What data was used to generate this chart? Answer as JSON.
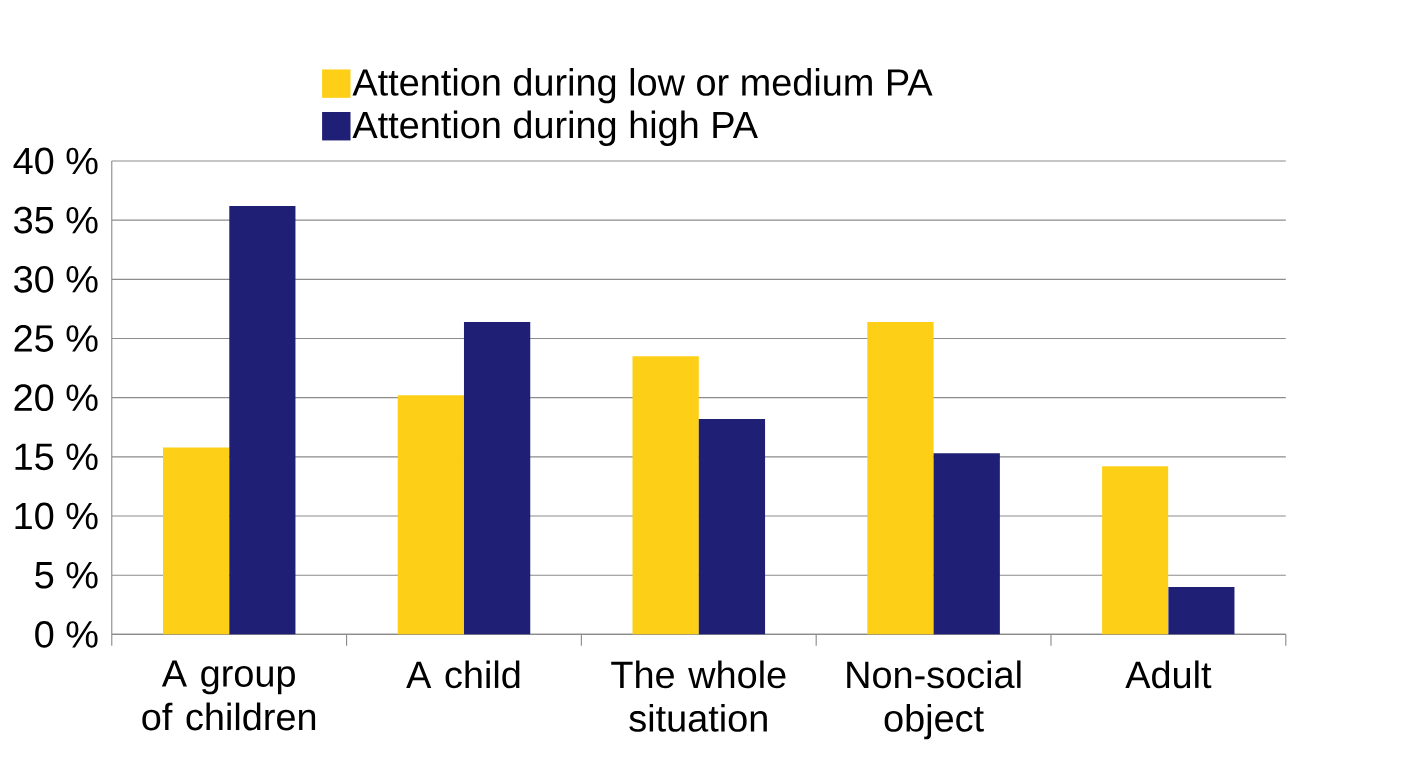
{
  "chart_data": {
    "type": "bar",
    "categories": [
      "A group of children",
      "A child",
      "The whole situation",
      "Non-social object",
      "Adult"
    ],
    "series": [
      {
        "name": "Attention during low or medium PA",
        "color": "#fdd017",
        "values": [
          15.8,
          20.2,
          23.5,
          26.4,
          14.2
        ]
      },
      {
        "name": "Attention during high PA",
        "color": "#1f1f75",
        "values": [
          36.2,
          26.4,
          18.2,
          15.3,
          4.0
        ]
      }
    ],
    "ylim": [
      0,
      40
    ],
    "yticks": [
      {
        "value": 0,
        "label": "0 %"
      },
      {
        "value": 5,
        "label": "5 %"
      },
      {
        "value": 10,
        "label": "10 %"
      },
      {
        "value": 15,
        "label": "15 %"
      },
      {
        "value": 20,
        "label": "20 %"
      },
      {
        "value": 25,
        "label": "25 %"
      },
      {
        "value": 30,
        "label": "30 %"
      },
      {
        "value": 35,
        "label": "35 %"
      },
      {
        "value": 40,
        "label": "40 %"
      }
    ],
    "grid": "y",
    "legend": "top"
  }
}
